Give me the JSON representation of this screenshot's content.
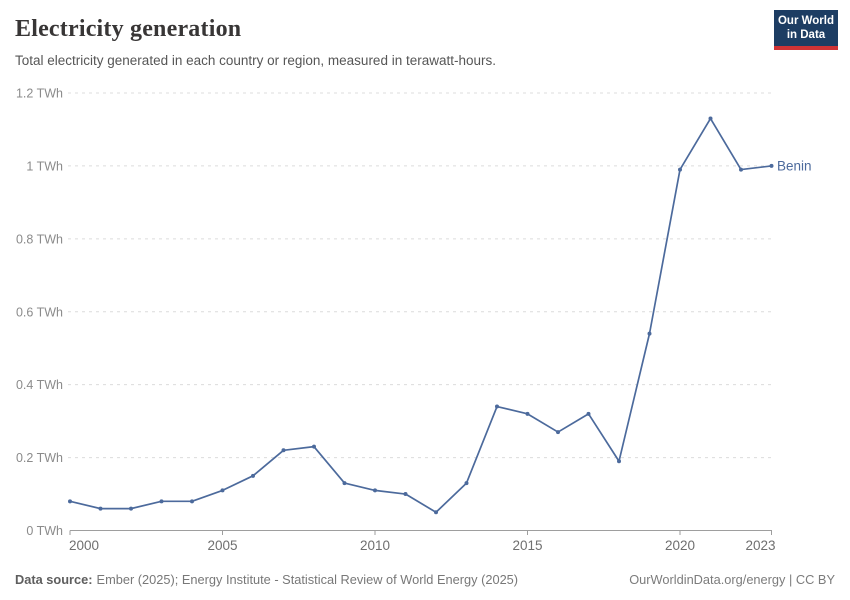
{
  "header": {
    "title": "Electricity generation",
    "subtitle": "Total electricity generated in each country or region, measured in terawatt-hours."
  },
  "logo": {
    "line1": "Our World",
    "line2": "in Data"
  },
  "chart_data": {
    "type": "line",
    "title": "Electricity generation",
    "ylabel": "",
    "xlabel": "",
    "unit": "TWh",
    "grid": "horizontal-dashed",
    "legend_position": "end-of-line-label",
    "x": [
      2000,
      2001,
      2002,
      2003,
      2004,
      2005,
      2006,
      2007,
      2008,
      2009,
      2010,
      2011,
      2012,
      2013,
      2014,
      2015,
      2016,
      2017,
      2018,
      2019,
      2020,
      2021,
      2022,
      2023
    ],
    "series": [
      {
        "name": "Benin",
        "color": "#4C6A9C",
        "values": [
          0.08,
          0.06,
          0.06,
          0.08,
          0.08,
          0.11,
          0.15,
          0.22,
          0.23,
          0.13,
          0.11,
          0.1,
          0.05,
          0.13,
          0.34,
          0.32,
          0.27,
          0.32,
          0.19,
          0.54,
          0.99,
          1.13,
          0.99,
          1.0
        ]
      }
    ],
    "ylim": [
      0,
      1.2
    ],
    "yticks": [
      0,
      0.2,
      0.4,
      0.6,
      0.8,
      1.0,
      1.2
    ],
    "ytick_labels": [
      "0 TWh",
      "0.2 TWh",
      "0.4 TWh",
      "0.6 TWh",
      "0.8 TWh",
      "1 TWh",
      "1.2 TWh"
    ],
    "xticks": [
      2000,
      2005,
      2010,
      2015,
      2020,
      2023
    ]
  },
  "footer": {
    "datasource_label": "Data source:",
    "datasource_text": "Ember (2025); Energy Institute - Statistical Review of World Energy (2025)",
    "link_text": "OurWorldinData.org/energy | CC BY"
  },
  "colors": {
    "line": "#4C6A9C",
    "grid": "#DCDCDC",
    "axis": "#9E9E9E",
    "y_label": "#8B8B8B",
    "x_label": "#6F6F6F",
    "logo_bg": "#1D3D63",
    "logo_red": "#CF3335"
  }
}
